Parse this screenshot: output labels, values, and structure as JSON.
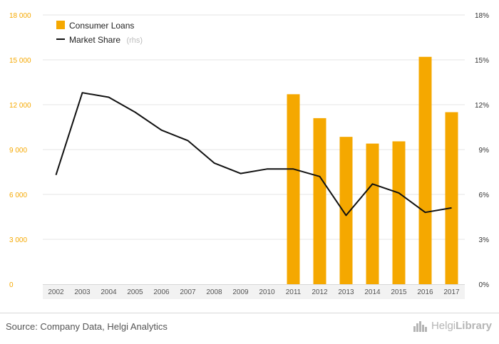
{
  "chart_data": {
    "type": "bar",
    "categories": [
      "2002",
      "2003",
      "2004",
      "2005",
      "2006",
      "2007",
      "2008",
      "2009",
      "2010",
      "2011",
      "2012",
      "2013",
      "2014",
      "2015",
      "2016",
      "2017"
    ],
    "series": [
      {
        "name": "Consumer Loans",
        "kind": "bar",
        "axis": "left",
        "color": "#f5a800",
        "values": [
          null,
          null,
          null,
          null,
          null,
          null,
          null,
          null,
          null,
          12700,
          11100,
          9850,
          9400,
          9550,
          15200,
          11500
        ]
      },
      {
        "name": "Market Share",
        "kind": "line",
        "axis": "right",
        "color": "#111111",
        "values": [
          7.3,
          12.8,
          12.5,
          11.5,
          10.3,
          9.6,
          8.1,
          7.4,
          7.7,
          7.7,
          7.2,
          4.6,
          6.7,
          6.1,
          4.8,
          5.1
        ]
      }
    ],
    "left_axis": {
      "min": 0,
      "max": 18000,
      "ticks": [
        "0",
        "3 000",
        "6 000",
        "9 000",
        "12 000",
        "15 000",
        "18 000"
      ],
      "tick_values": [
        0,
        3000,
        6000,
        9000,
        12000,
        15000,
        18000
      ]
    },
    "right_axis": {
      "min": 0,
      "max": 18,
      "ticks": [
        "0%",
        "3%",
        "6%",
        "9%",
        "12%",
        "15%",
        "18%"
      ],
      "tick_values": [
        0,
        3,
        6,
        9,
        12,
        15,
        18
      ]
    },
    "legend": [
      {
        "label": "Consumer Loans",
        "suffix": ""
      },
      {
        "label": "Market Share",
        "suffix": "(rhs)"
      }
    ],
    "legend_position": "top-left",
    "grid": true
  },
  "footer": {
    "source": "Source: Company Data, Helgi Analytics",
    "brand_light": "Helgi",
    "brand_bold": "Library"
  }
}
